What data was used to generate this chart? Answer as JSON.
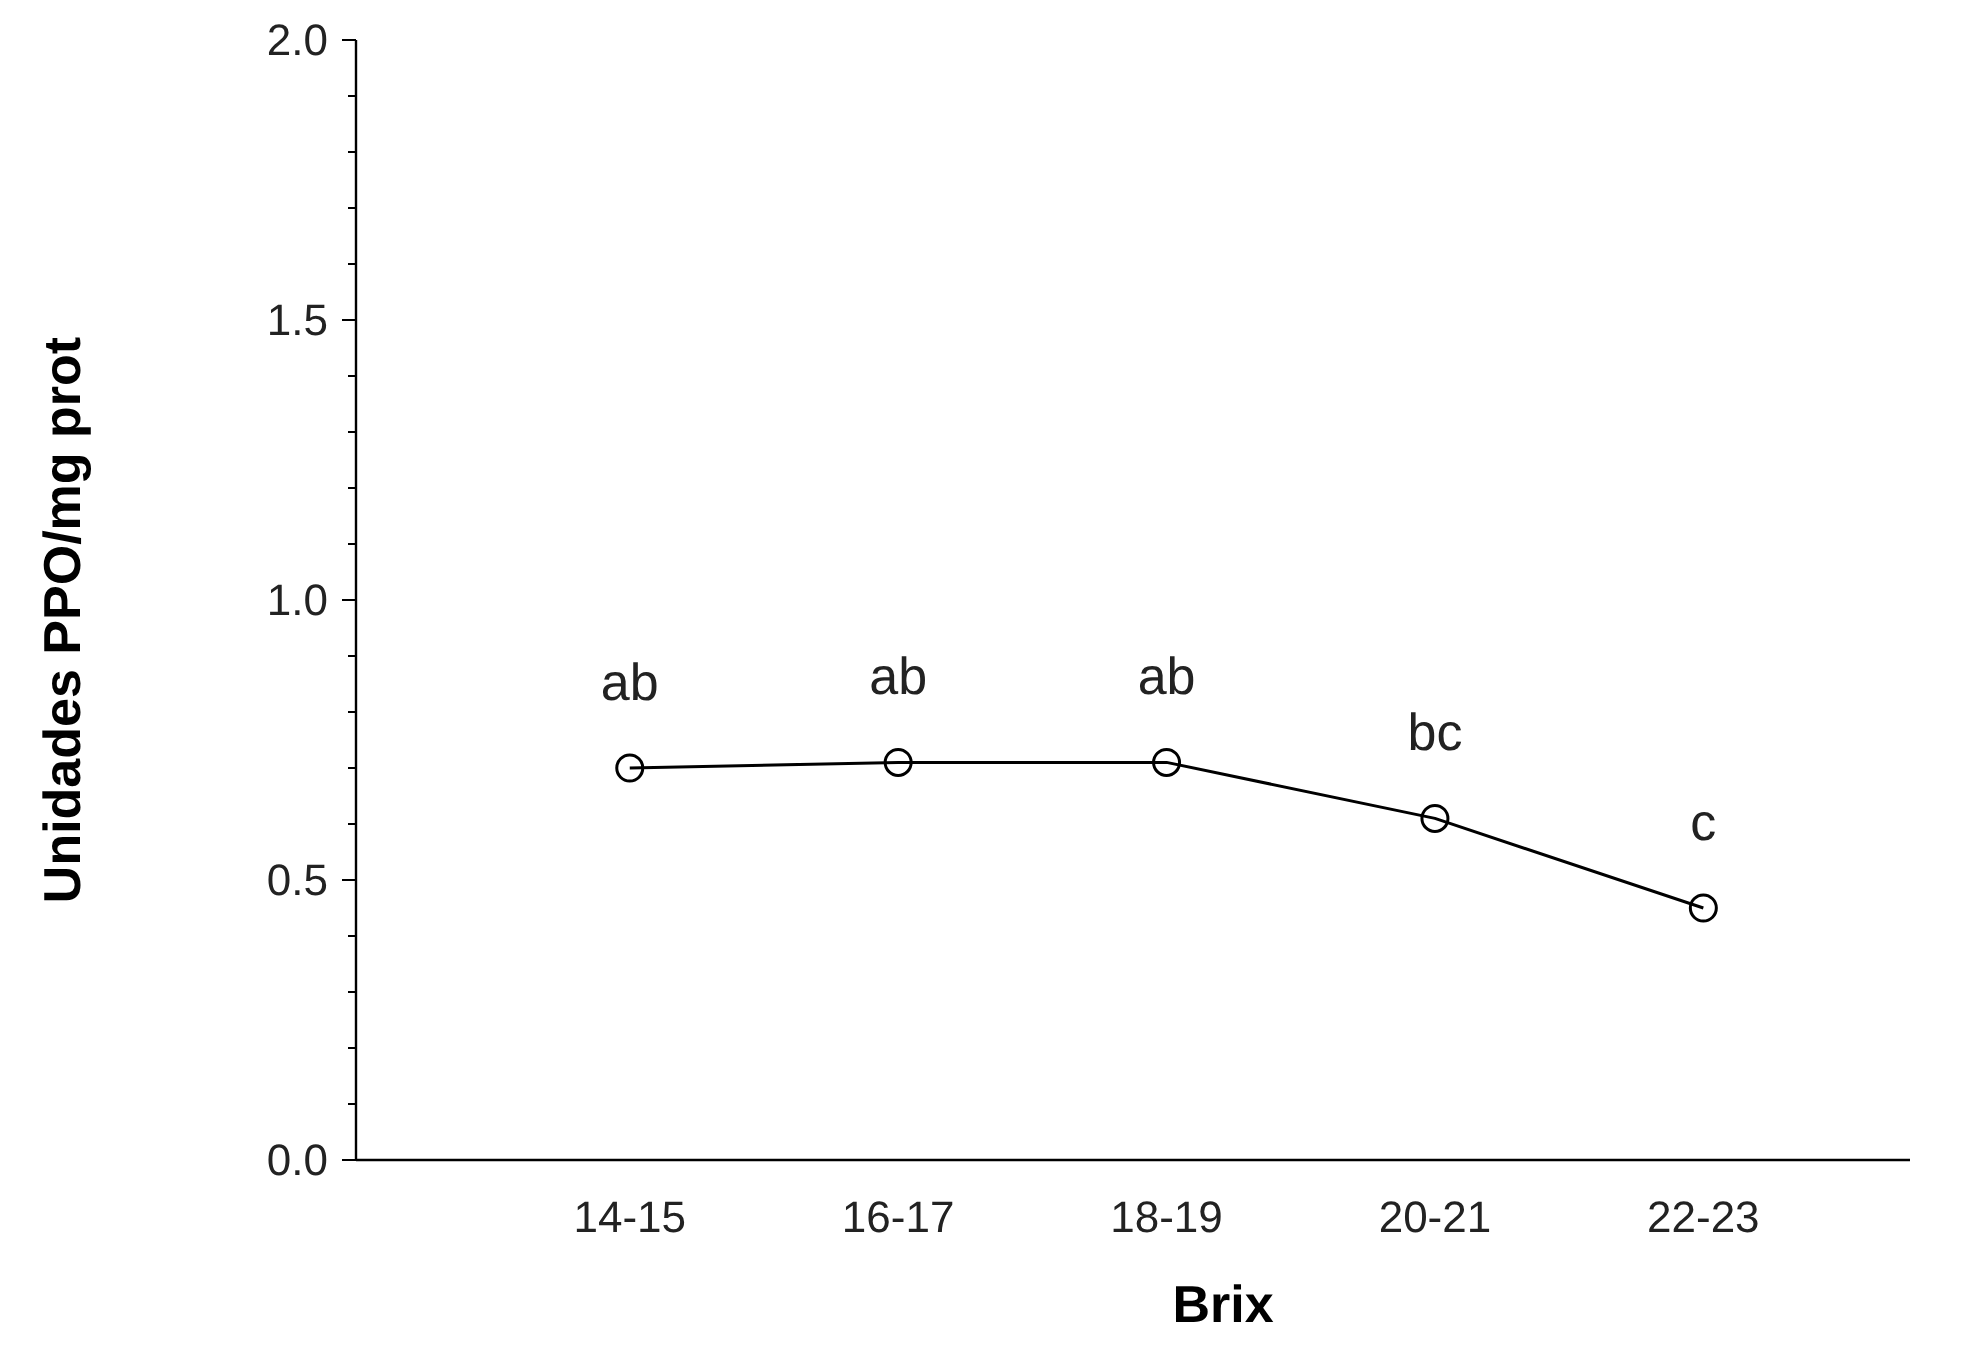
{
  "chart_data": {
    "type": "line",
    "xlabel": "Brix",
    "ylabel": "Unidades PPO/mg prot",
    "categories": [
      "14-15",
      "16-17",
      "18-19",
      "20-21",
      "22-23"
    ],
    "series": [
      {
        "color": "#000000",
        "values": [
          0.7,
          0.71,
          0.71,
          0.61,
          0.45
        ]
      }
    ],
    "ylim": [
      0,
      2
    ],
    "yticks": [
      {
        "value": 0,
        "label": "0.0"
      },
      {
        "value": 0.1,
        "label": null
      },
      {
        "value": 0.2,
        "label": null
      },
      {
        "value": 0.3,
        "label": null
      },
      {
        "value": 0.4,
        "label": null
      },
      {
        "value": 0.5,
        "label": "0.5"
      },
      {
        "value": 0.6,
        "label": null
      },
      {
        "value": 0.7,
        "label": null
      },
      {
        "value": 0.8,
        "label": null
      },
      {
        "value": 0.9,
        "label": null
      },
      {
        "value": 1,
        "label": "1.0"
      },
      {
        "value": 1.1,
        "label": null
      },
      {
        "value": 1.2,
        "label": null
      },
      {
        "value": 1.3,
        "label": null
      },
      {
        "value": 1.4,
        "label": null
      },
      {
        "value": 1.5,
        "label": "1.5"
      },
      {
        "value": 1.6,
        "label": null
      },
      {
        "value": 1.7,
        "label": null
      },
      {
        "value": 1.8,
        "label": null
      },
      {
        "value": 1.9,
        "label": null
      },
      {
        "value": 2,
        "label": "2.0"
      }
    ],
    "annotations": [
      {
        "text": "ab",
        "x": "14-15",
        "y": 0.7
      },
      {
        "text": "ab",
        "x": "16-17",
        "y": 0.71
      },
      {
        "text": "ab",
        "x": "18-19",
        "y": 0.71
      },
      {
        "text": "bc",
        "x": "20-21",
        "y": 0.61
      },
      {
        "text": "c",
        "x": "22-23",
        "y": 0.45
      }
    ],
    "marker": "circle",
    "line_style": "solid",
    "grid": false
  }
}
